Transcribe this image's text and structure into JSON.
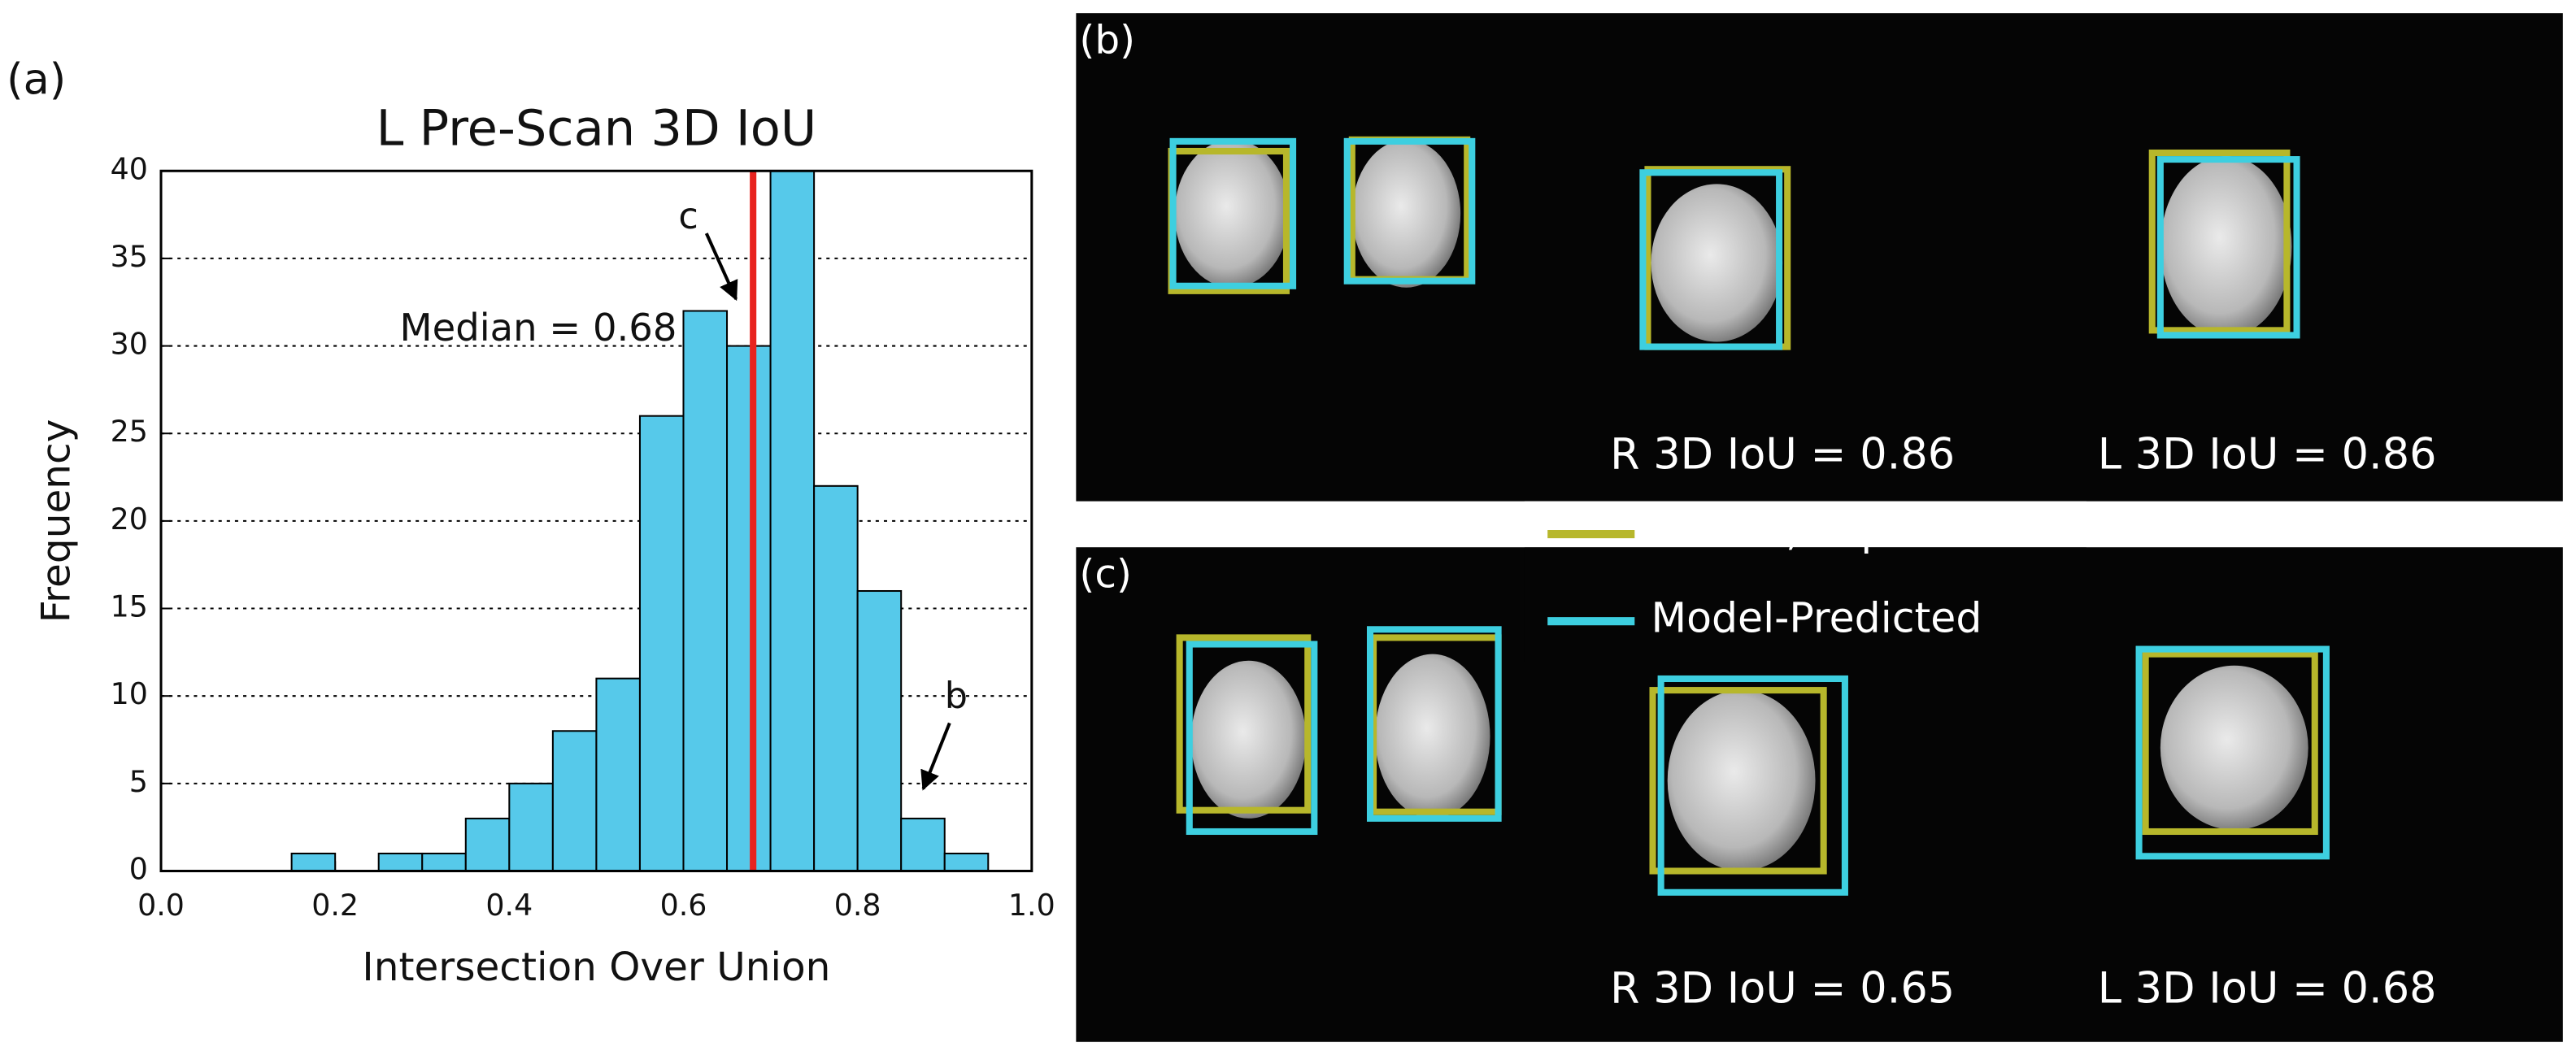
{
  "figure_label": "(a)",
  "chart_data": {
    "type": "histogram",
    "title": "L Pre-Scan 3D IoU",
    "x_label": "Intersection Over Union",
    "y_label": "Frequency",
    "bins": [
      0.15,
      0.2,
      0.25,
      0.3,
      0.35,
      0.4,
      0.45,
      0.5,
      0.55,
      0.6,
      0.65,
      0.7,
      0.75,
      0.8,
      0.85,
      0.9,
      0.95
    ],
    "values": [
      1,
      0,
      1,
      1,
      3,
      5,
      8,
      11,
      26,
      32,
      30,
      40,
      22,
      16,
      3,
      1
    ],
    "color": "#56c9ea",
    "xlim": [
      0,
      1
    ],
    "xticks": [
      {
        "value": 0,
        "label": "0.0"
      },
      {
        "value": 0.2,
        "label": "0.2"
      },
      {
        "value": 0.4,
        "label": "0.4"
      },
      {
        "value": 0.6,
        "label": "0.6"
      },
      {
        "value": 0.8,
        "label": "0.8"
      },
      {
        "value": 1,
        "label": "1.0"
      }
    ],
    "ylim": [
      0,
      40
    ],
    "yticks": [
      0,
      5,
      10,
      15,
      20,
      25,
      30,
      35,
      40
    ],
    "grid": true,
    "median": {
      "value": 0.68,
      "label": "Median = 0.68",
      "color": "#e8231f"
    },
    "annotations": [
      "c",
      "b"
    ]
  },
  "panels": [
    {
      "label": "(b)",
      "captions": [
        "R 3D IoU = 0.86",
        "L 3D IoU = 0.86"
      ]
    },
    {
      "label": "(c)",
      "captions": [
        "R 3D IoU = 0.65",
        "L 3D IoU = 0.68"
      ]
    }
  ],
  "legend": [
    {
      "name": "Offline, expert user",
      "color": "#b7b72b"
    },
    {
      "name": "Model-Predicted",
      "color": "#3dcfe0"
    }
  ]
}
